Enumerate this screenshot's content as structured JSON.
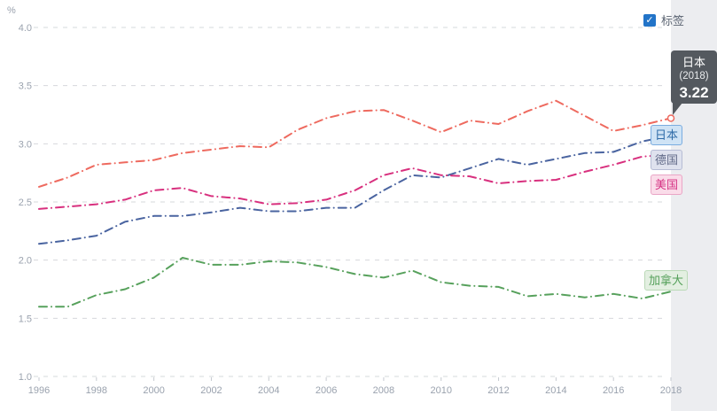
{
  "controls": {
    "labels_checkbox": {
      "label": "标签",
      "checked": true,
      "check_glyph": "✓",
      "box_color": "#2274c8"
    }
  },
  "tooltip": {
    "series": "日本",
    "year_label": "(2018)",
    "value": "3.22",
    "bg_color": "#54595f"
  },
  "series_end_labels": [
    {
      "text": "日本",
      "bg": "#cfe3f5",
      "border": "#7aade0",
      "color": "#2f6ca8",
      "highlighted": true
    },
    {
      "text": "德国",
      "bg": "#dfe2ee",
      "border": "#b6bcd4",
      "color": "#626b89",
      "highlighted": false
    },
    {
      "text": "美国",
      "bg": "#fadce9",
      "border": "#eaa6c6",
      "color": "#d63384",
      "highlighted": false
    },
    {
      "text": "加拿大",
      "bg": "#e3efe1",
      "border": "#bad9b7",
      "color": "#55a05a",
      "highlighted": false
    }
  ],
  "chart_data": {
    "type": "line",
    "title": "",
    "unit": "%",
    "xlabel": "",
    "ylabel": "%",
    "x": [
      1996,
      1997,
      1998,
      1999,
      2000,
      2001,
      2002,
      2003,
      2004,
      2005,
      2006,
      2007,
      2008,
      2009,
      2010,
      2011,
      2012,
      2013,
      2014,
      2015,
      2016,
      2017,
      2018
    ],
    "x_tick_labels": [
      "1996",
      "1998",
      "2000",
      "2002",
      "2004",
      "2006",
      "2008",
      "2010",
      "2012",
      "2014",
      "2016",
      "2018"
    ],
    "ylim": [
      1.0,
      4.0
    ],
    "y_ticks": [
      1.0,
      1.5,
      2.0,
      2.5,
      3.0,
      3.5,
      4.0
    ],
    "y_tick_labels": [
      "1.0",
      "1.5",
      "2.0",
      "2.5",
      "3.0",
      "3.5",
      "4.0"
    ],
    "grid": "horizontal-dashed",
    "line_style": "dash-dot",
    "legend_position": "line-end-labels",
    "series": [
      {
        "name": "日本",
        "color": "#ee6a5f",
        "values": [
          2.63,
          2.71,
          2.82,
          2.84,
          2.86,
          2.92,
          2.95,
          2.98,
          2.97,
          3.12,
          3.22,
          3.28,
          3.29,
          3.2,
          3.1,
          3.2,
          3.17,
          3.28,
          3.37,
          3.24,
          3.11,
          3.16,
          3.22
        ]
      },
      {
        "name": "德国",
        "color": "#4a64a0",
        "values": [
          2.14,
          2.17,
          2.21,
          2.33,
          2.38,
          2.38,
          2.41,
          2.45,
          2.42,
          2.42,
          2.45,
          2.45,
          2.6,
          2.73,
          2.71,
          2.79,
          2.87,
          2.82,
          2.87,
          2.92,
          2.93,
          3.02,
          3.07
        ]
      },
      {
        "name": "美国",
        "color": "#d8307e",
        "values": [
          2.44,
          2.46,
          2.48,
          2.52,
          2.6,
          2.62,
          2.55,
          2.53,
          2.48,
          2.49,
          2.52,
          2.6,
          2.73,
          2.79,
          2.73,
          2.72,
          2.66,
          2.68,
          2.69,
          2.76,
          2.82,
          2.89,
          2.91
        ]
      },
      {
        "name": "加拿大",
        "color": "#57a15c",
        "values": [
          1.6,
          1.6,
          1.7,
          1.75,
          1.85,
          2.02,
          1.96,
          1.96,
          1.99,
          1.98,
          1.94,
          1.88,
          1.85,
          1.91,
          1.81,
          1.78,
          1.77,
          1.69,
          1.71,
          1.68,
          1.71,
          1.67,
          1.73
        ]
      }
    ],
    "highlight": {
      "series": "日本",
      "x": 2018,
      "value": 3.22
    }
  }
}
